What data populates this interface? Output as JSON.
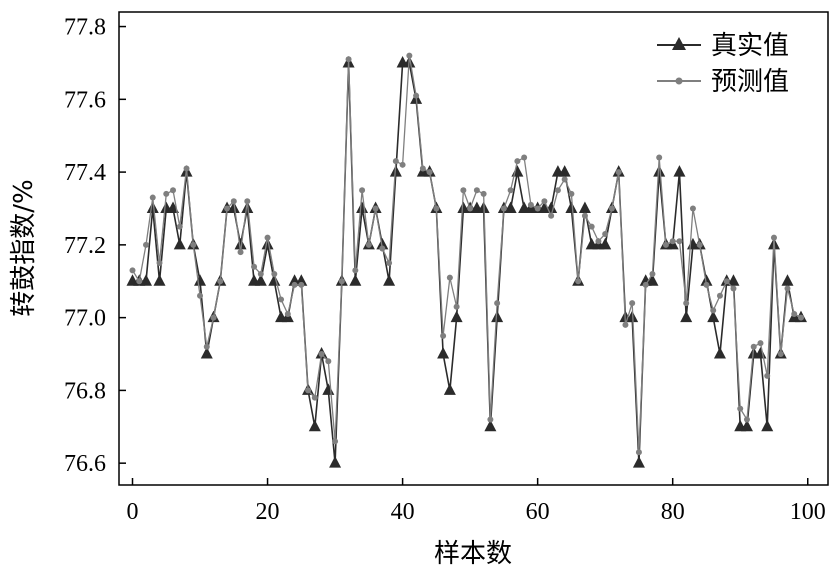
{
  "chart_data": {
    "type": "line",
    "xlabel": "样本数",
    "ylabel": "转鼓指数/%",
    "xlim": [
      -2,
      103
    ],
    "ylim": [
      76.54,
      77.84
    ],
    "x_ticks": [
      0,
      20,
      40,
      60,
      80,
      100
    ],
    "y_ticks": [
      76.6,
      76.8,
      77.0,
      77.2,
      77.4,
      77.6,
      77.8
    ],
    "x_tick_labels": [
      "0",
      "20",
      "40",
      "60",
      "80",
      "100"
    ],
    "y_tick_labels": [
      "76.6",
      "76.8",
      "77.0",
      "77.2",
      "77.4",
      "77.6",
      "77.8"
    ],
    "grid": false,
    "legend_position": "top-right",
    "x": [
      0,
      1,
      2,
      3,
      4,
      5,
      6,
      7,
      8,
      9,
      10,
      11,
      12,
      13,
      14,
      15,
      16,
      17,
      18,
      19,
      20,
      21,
      22,
      23,
      24,
      25,
      26,
      27,
      28,
      29,
      30,
      31,
      32,
      33,
      34,
      35,
      36,
      37,
      38,
      39,
      40,
      41,
      42,
      43,
      44,
      45,
      46,
      47,
      48,
      49,
      50,
      51,
      52,
      53,
      54,
      55,
      56,
      57,
      58,
      59,
      60,
      61,
      62,
      63,
      64,
      65,
      66,
      67,
      68,
      69,
      70,
      71,
      72,
      73,
      74,
      75,
      76,
      77,
      78,
      79,
      80,
      81,
      82,
      83,
      84,
      85,
      86,
      87,
      88,
      89,
      90,
      91,
      92,
      93,
      94,
      95,
      96,
      97,
      98,
      99
    ],
    "series": [
      {
        "name": "真实值",
        "color": "#2b2b2b",
        "marker": "triangle",
        "values": [
          77.1,
          77.1,
          77.1,
          77.3,
          77.1,
          77.3,
          77.3,
          77.2,
          77.4,
          77.2,
          77.1,
          76.9,
          77.0,
          77.1,
          77.3,
          77.3,
          77.2,
          77.3,
          77.1,
          77.1,
          77.2,
          77.1,
          77.0,
          77.0,
          77.1,
          77.1,
          76.8,
          76.7,
          76.9,
          76.8,
          76.6,
          77.1,
          77.7,
          77.1,
          77.3,
          77.2,
          77.3,
          77.2,
          77.1,
          77.4,
          77.7,
          77.7,
          77.6,
          77.4,
          77.4,
          77.3,
          76.9,
          76.8,
          77.0,
          77.3,
          77.3,
          77.3,
          77.3,
          76.7,
          77.0,
          77.3,
          77.3,
          77.4,
          77.3,
          77.3,
          77.3,
          77.3,
          77.3,
          77.4,
          77.4,
          77.3,
          77.1,
          77.3,
          77.2,
          77.2,
          77.2,
          77.3,
          77.4,
          77.0,
          77.0,
          76.6,
          77.1,
          77.1,
          77.4,
          77.2,
          77.2,
          77.4,
          77.0,
          77.2,
          77.2,
          77.1,
          77.0,
          76.9,
          77.1,
          77.1,
          76.7,
          76.7,
          76.9,
          76.9,
          76.7,
          77.2,
          76.9,
          77.1,
          77.0,
          77.0
        ]
      },
      {
        "name": "预测值",
        "color": "#7f7f7f",
        "marker": "circle",
        "values": [
          77.13,
          77.1,
          77.2,
          77.33,
          77.15,
          77.34,
          77.35,
          77.25,
          77.41,
          77.2,
          77.06,
          76.92,
          77.0,
          77.1,
          77.3,
          77.32,
          77.18,
          77.32,
          77.14,
          77.12,
          77.22,
          77.12,
          77.05,
          77.01,
          77.09,
          77.09,
          76.8,
          76.78,
          76.9,
          76.88,
          76.66,
          77.1,
          77.71,
          77.13,
          77.35,
          77.2,
          77.3,
          77.19,
          77.15,
          77.43,
          77.42,
          77.72,
          77.61,
          77.41,
          77.4,
          77.3,
          76.95,
          77.11,
          77.03,
          77.35,
          77.3,
          77.35,
          77.34,
          76.72,
          77.04,
          77.3,
          77.35,
          77.43,
          77.44,
          77.31,
          77.3,
          77.32,
          77.28,
          77.35,
          77.38,
          77.34,
          77.1,
          77.28,
          77.25,
          77.21,
          77.23,
          77.3,
          77.4,
          76.98,
          77.04,
          76.63,
          77.09,
          77.12,
          77.44,
          77.2,
          77.21,
          77.21,
          77.04,
          77.3,
          77.2,
          77.09,
          77.02,
          77.06,
          77.1,
          77.08,
          76.75,
          76.72,
          76.92,
          76.93,
          76.84,
          77.22,
          76.9,
          77.08,
          77.01,
          77.0
        ]
      }
    ]
  }
}
